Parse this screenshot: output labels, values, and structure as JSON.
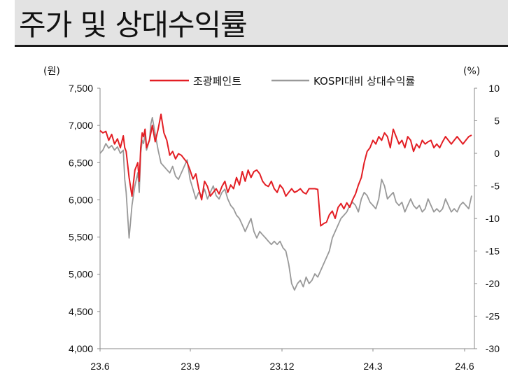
{
  "header": {
    "title": "주가 및 상대수익률"
  },
  "chart_data": {
    "type": "line",
    "left_unit": "(원)",
    "right_unit": "(%)",
    "y_left": {
      "ticks": [
        "7,500",
        "7,000",
        "6,500",
        "6,000",
        "5,500",
        "5,000",
        "4,500",
        "4,000"
      ],
      "ylim": [
        4000,
        7500
      ]
    },
    "y_right": {
      "ticks": [
        "10",
        "5",
        "0",
        "-5",
        "-10",
        "-15",
        "-20",
        "-25",
        "-30"
      ],
      "ylim": [
        -30,
        10
      ]
    },
    "x_ticks": [
      "23.6",
      "23.9",
      "23.12",
      "24.3",
      "24.6"
    ],
    "legend_position": "top-right",
    "grid": false,
    "series": [
      {
        "name": "조광페인트",
        "axis": "left",
        "color": "#e31e24",
        "x": [
          0,
          2,
          4,
          6,
          8,
          10,
          12,
          14,
          16,
          17,
          18,
          20,
          22,
          24,
          26,
          27,
          28,
          29,
          30,
          31,
          32,
          34,
          35,
          36,
          38,
          40,
          42,
          44,
          46,
          48,
          50,
          52,
          54,
          56,
          58,
          60,
          62,
          64,
          66,
          68,
          70,
          72,
          74,
          76,
          78,
          80,
          82,
          84,
          86,
          88,
          90,
          92,
          94,
          96,
          98,
          100,
          102,
          104,
          106,
          108,
          110,
          112,
          114,
          116,
          118,
          120,
          122,
          124,
          126,
          128,
          130,
          132,
          134,
          136,
          138,
          140,
          142,
          144,
          146,
          148,
          150,
          152,
          154,
          156,
          158,
          160,
          162,
          164,
          166,
          168,
          170,
          172,
          174,
          176,
          178,
          180,
          182,
          184,
          186,
          188,
          190,
          192,
          194,
          196,
          198,
          200,
          202,
          204,
          206,
          208,
          210,
          212,
          214,
          216,
          218,
          220,
          222,
          224,
          226,
          228,
          230,
          232,
          234,
          236,
          238,
          240,
          242,
          244,
          246,
          248,
          250,
          252,
          254,
          256
        ],
        "values": [
          6930,
          6900,
          6920,
          6800,
          6880,
          6750,
          6820,
          6700,
          6860,
          6700,
          6650,
          6300,
          6050,
          6400,
          6500,
          6250,
          6700,
          6900,
          6850,
          6950,
          6700,
          6800,
          6900,
          7000,
          6780,
          6950,
          7150,
          6900,
          6800,
          6600,
          6650,
          6550,
          6620,
          6600,
          6550,
          6500,
          6400,
          6280,
          6350,
          6150,
          6000,
          6250,
          6180,
          6050,
          6100,
          6150,
          6080,
          6180,
          6250,
          6100,
          6200,
          6150,
          6300,
          6200,
          6380,
          6250,
          6400,
          6300,
          6380,
          6400,
          6350,
          6250,
          6200,
          6180,
          6250,
          6150,
          6100,
          6200,
          6150,
          6050,
          6100,
          6150,
          6100,
          6120,
          6150,
          6100,
          6080,
          6150,
          6150,
          6150,
          6140,
          5650,
          5680,
          5700,
          5800,
          5850,
          5750,
          5900,
          5950,
          5880,
          5960,
          5900,
          6000,
          6080,
          6200,
          6300,
          6500,
          6650,
          6700,
          6800,
          6750,
          6850,
          6800,
          6900,
          6850,
          6700,
          6950,
          6850,
          6750,
          6800,
          6700,
          6850,
          6800,
          6650,
          6750,
          6700,
          6800,
          6750,
          6780,
          6800,
          6700,
          6750,
          6700,
          6780,
          6850,
          6800,
          6750,
          6800,
          6850,
          6800,
          6750,
          6800,
          6850,
          6870
        ],
        "note": ""
      },
      {
        "name": "KOSPI대비 상대수익률",
        "axis": "right",
        "color": "#999999",
        "x": [
          0,
          2,
          4,
          6,
          8,
          10,
          12,
          14,
          16,
          17,
          18,
          20,
          22,
          24,
          26,
          27,
          28,
          29,
          30,
          31,
          32,
          34,
          35,
          36,
          38,
          40,
          42,
          44,
          46,
          48,
          50,
          52,
          54,
          56,
          58,
          60,
          62,
          64,
          66,
          68,
          70,
          72,
          74,
          76,
          78,
          80,
          82,
          84,
          86,
          88,
          90,
          92,
          94,
          96,
          98,
          100,
          102,
          104,
          106,
          108,
          110,
          112,
          114,
          116,
          118,
          120,
          122,
          124,
          126,
          128,
          130,
          132,
          134,
          136,
          138,
          140,
          142,
          144,
          146,
          148,
          150,
          152,
          154,
          156,
          158,
          160,
          162,
          164,
          166,
          168,
          170,
          172,
          174,
          176,
          178,
          180,
          182,
          184,
          186,
          188,
          190,
          192,
          194,
          196,
          198,
          200,
          202,
          204,
          206,
          208,
          210,
          212,
          214,
          216,
          218,
          220,
          222,
          224,
          226,
          228,
          230,
          232,
          234,
          236,
          238,
          240,
          242,
          244,
          246,
          248,
          250,
          252,
          254,
          256
        ],
        "values": [
          0,
          0.5,
          1.5,
          0.8,
          1.2,
          0.5,
          1.0,
          0,
          0.5,
          -4,
          -6,
          -13,
          -8,
          -5,
          -3,
          -6,
          0,
          2,
          1.5,
          3,
          0.5,
          2,
          4.5,
          5.5,
          3,
          0.5,
          -1.5,
          -2,
          -2.5,
          -3,
          -2,
          -3.5,
          -4,
          -3,
          -2,
          -1,
          -4,
          -5.5,
          -7,
          -6,
          -6.5,
          -5.5,
          -7,
          -6,
          -5,
          -6.5,
          -7,
          -6,
          -5.5,
          -7,
          -8,
          -8.5,
          -9.5,
          -10,
          -11,
          -12,
          -11,
          -10,
          -12,
          -13,
          -12,
          -12.5,
          -13,
          -13.5,
          -14,
          -13.5,
          -14,
          -13.5,
          -14.5,
          -15,
          -17,
          -20,
          -21,
          -20,
          -19.5,
          -20.5,
          -19,
          -20,
          -19.5,
          -18.5,
          -19,
          -18,
          -17,
          -16,
          -15,
          -13,
          -12,
          -11,
          -10,
          -9.5,
          -9,
          -8,
          -7.5,
          -8,
          -9,
          -7,
          -6,
          -6.5,
          -7.5,
          -8,
          -8.5,
          -7,
          -4,
          -5,
          -7,
          -6.5,
          -6,
          -7.5,
          -8,
          -7.5,
          -9,
          -8,
          -7,
          -8,
          -8.5,
          -8,
          -9,
          -8.5,
          -7,
          -8,
          -9,
          -8.5,
          -9,
          -8.5,
          -7,
          -8,
          -9,
          -8.5,
          -9,
          -8,
          -7.5,
          -8,
          -8.5,
          -6.5
        ],
        "note": ""
      }
    ]
  }
}
